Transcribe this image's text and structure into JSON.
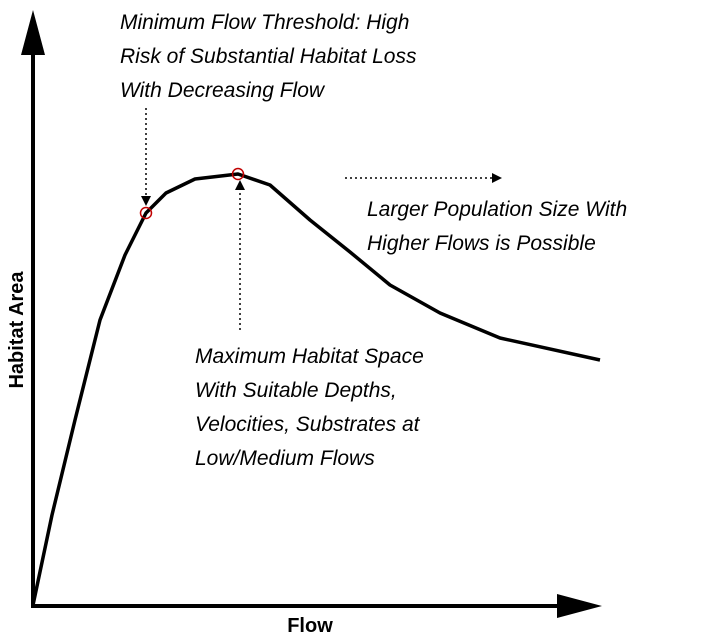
{
  "axes": {
    "x_label": "Flow",
    "y_label": "Habitat Area"
  },
  "annotations": [
    {
      "lines": [
        "Minimum Flow Threshold: High",
        "Risk of Substantial Habitat Loss",
        "With Decreasing Flow"
      ]
    },
    {
      "lines": [
        "Maximum Habitat Space",
        "With Suitable Depths,",
        "Velocities, Substrates at",
        "Low/Medium Flows"
      ]
    },
    {
      "lines": [
        "Larger Population Size With",
        "Higher Flows is Possible"
      ]
    }
  ]
}
